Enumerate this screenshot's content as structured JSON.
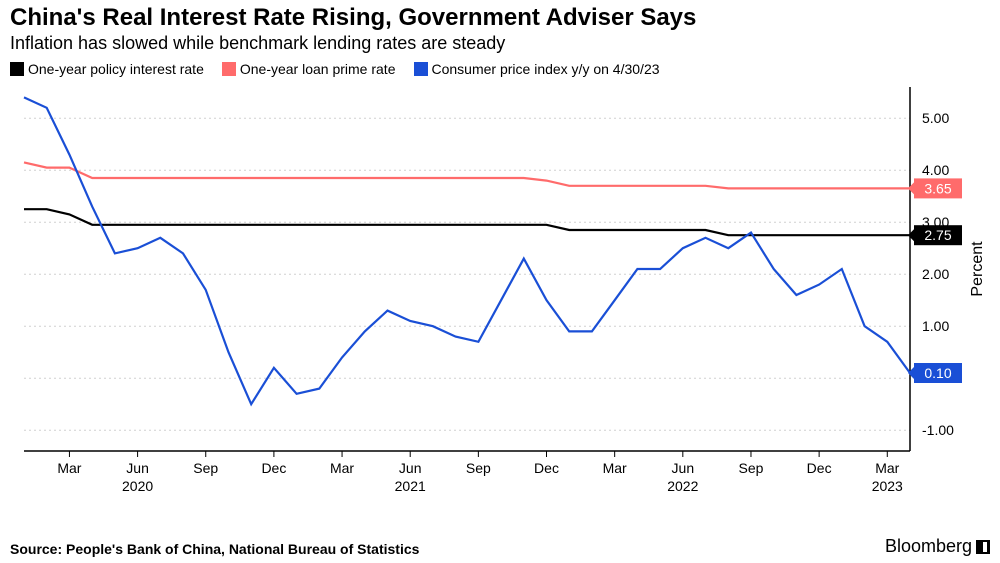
{
  "title": "China's Real Interest Rate Rising, Government Adviser Says",
  "subtitle": "Inflation has slowed while benchmark lending rates are steady",
  "source": "Source: People's Bank of China, National Bureau of Statistics",
  "brand": "Bloomberg",
  "chart": {
    "type": "line",
    "background_color": "#ffffff",
    "grid_color": "#d0d0d0",
    "axis_color": "#000000",
    "y_axis": {
      "label": "Percent",
      "min": -1.4,
      "max": 5.6,
      "ticks": [
        -1.0,
        0.0,
        1.0,
        2.0,
        3.0,
        4.0,
        5.0
      ],
      "tick_fontsize": 14
    },
    "x_axis": {
      "start": "2020-01",
      "end": "2023-04",
      "ticks": [
        {
          "pos": 2,
          "top": "Mar",
          "bottom": ""
        },
        {
          "pos": 5,
          "top": "Jun",
          "bottom": "2020"
        },
        {
          "pos": 8,
          "top": "Sep",
          "bottom": ""
        },
        {
          "pos": 11,
          "top": "Dec",
          "bottom": ""
        },
        {
          "pos": 14,
          "top": "Mar",
          "bottom": ""
        },
        {
          "pos": 17,
          "top": "Jun",
          "bottom": "2021"
        },
        {
          "pos": 20,
          "top": "Sep",
          "bottom": ""
        },
        {
          "pos": 23,
          "top": "Dec",
          "bottom": ""
        },
        {
          "pos": 26,
          "top": "Mar",
          "bottom": ""
        },
        {
          "pos": 29,
          "top": "Jun",
          "bottom": "2022"
        },
        {
          "pos": 32,
          "top": "Sep",
          "bottom": ""
        },
        {
          "pos": 35,
          "top": "Dec",
          "bottom": ""
        },
        {
          "pos": 38,
          "top": "Mar",
          "bottom": "2023"
        }
      ]
    },
    "legend": [
      {
        "label": "One-year policy interest rate",
        "color": "#000000"
      },
      {
        "label": "One-year loan prime rate",
        "color": "#ff6b6b"
      },
      {
        "label": "Consumer price index y/y on 4/30/23",
        "color": "#1a4fd6"
      }
    ],
    "series": {
      "policy_rate": {
        "color": "#000000",
        "end_value": 2.75,
        "end_label": "2.75",
        "values": [
          3.25,
          3.25,
          3.15,
          2.95,
          2.95,
          2.95,
          2.95,
          2.95,
          2.95,
          2.95,
          2.95,
          2.95,
          2.95,
          2.95,
          2.95,
          2.95,
          2.95,
          2.95,
          2.95,
          2.95,
          2.95,
          2.95,
          2.95,
          2.95,
          2.85,
          2.85,
          2.85,
          2.85,
          2.85,
          2.85,
          2.85,
          2.75,
          2.75,
          2.75,
          2.75,
          2.75,
          2.75,
          2.75,
          2.75,
          2.75
        ]
      },
      "loan_prime": {
        "color": "#ff6b6b",
        "end_value": 3.65,
        "end_label": "3.65",
        "values": [
          4.15,
          4.05,
          4.05,
          3.85,
          3.85,
          3.85,
          3.85,
          3.85,
          3.85,
          3.85,
          3.85,
          3.85,
          3.85,
          3.85,
          3.85,
          3.85,
          3.85,
          3.85,
          3.85,
          3.85,
          3.85,
          3.85,
          3.85,
          3.8,
          3.7,
          3.7,
          3.7,
          3.7,
          3.7,
          3.7,
          3.7,
          3.65,
          3.65,
          3.65,
          3.65,
          3.65,
          3.65,
          3.65,
          3.65,
          3.65
        ]
      },
      "cpi": {
        "color": "#1a4fd6",
        "end_value": 0.1,
        "end_label": "0.10",
        "values": [
          5.4,
          5.2,
          4.3,
          3.3,
          2.4,
          2.5,
          2.7,
          2.4,
          1.7,
          0.5,
          -0.5,
          0.2,
          -0.3,
          -0.2,
          0.4,
          0.9,
          1.3,
          1.1,
          1.0,
          0.8,
          0.7,
          1.5,
          2.3,
          1.5,
          0.9,
          0.9,
          1.5,
          2.1,
          2.1,
          2.5,
          2.7,
          2.5,
          2.8,
          2.1,
          1.6,
          1.8,
          2.1,
          1.0,
          0.7,
          0.1
        ]
      }
    }
  }
}
